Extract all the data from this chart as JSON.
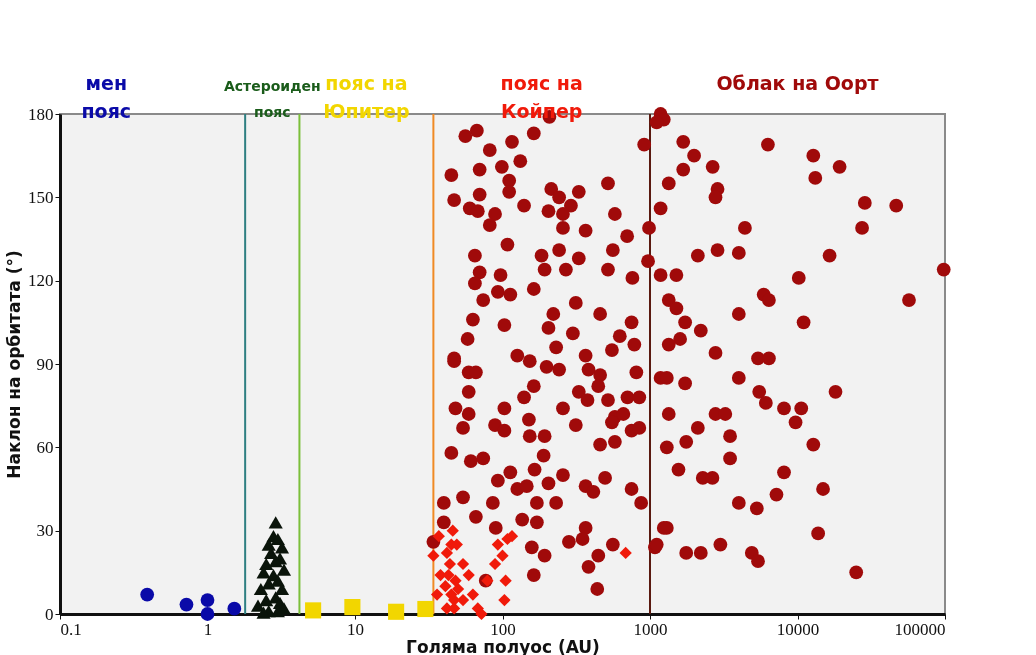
{
  "chart_data": {
    "type": "scatter",
    "xlabel": "Голяма полуос (AU)",
    "ylabel": "Наклон на орбитата (°)",
    "log": "x",
    "xlim": [
      0.1,
      100000
    ],
    "xticks": [
      0.1,
      1,
      10,
      100,
      1000,
      10000,
      100000
    ],
    "ylim": [
      0,
      180
    ],
    "yticks": [
      0,
      30,
      60,
      90,
      120,
      150,
      180
    ],
    "grid": false,
    "series": [
      {
        "color": "#0a0aa8",
        "marker": "circle",
        "x": [
          0.39,
          0.72,
          1.0,
          1.0,
          1.52
        ],
        "values": [
          7,
          3.4,
          5,
          0,
          1.9
        ]
      },
      {
        "color": "#0a140a",
        "marker": "triangle",
        "x": [
          2.9,
          2.8,
          3.0,
          2.6,
          3.2,
          2.7,
          3.1,
          2.5,
          2.9,
          3.3,
          2.4,
          2.8,
          3.0,
          2.6,
          2.3,
          3.2,
          2.9,
          2.5,
          3.1,
          2.2,
          3.0,
          2.6,
          3.3,
          2.4
        ],
        "values": [
          33,
          28,
          27,
          25,
          24,
          22,
          20,
          18,
          19,
          16,
          15,
          14,
          12,
          11,
          9,
          9,
          6,
          5,
          4,
          3,
          1,
          1,
          2,
          0.5
        ]
      },
      {
        "color": "#f2d600",
        "marker": "square",
        "x": [
          5.2,
          9.6,
          19,
          30
        ],
        "values": [
          1.3,
          2.5,
          0.8,
          1.8
        ]
      },
      {
        "color": "#f01a0a",
        "marker": "diamond",
        "x": [
          34,
          36,
          37,
          38,
          42,
          43,
          45,
          47,
          47,
          49,
          50,
          54,
          54,
          59,
          63,
          68,
          72,
          79,
          89,
          93,
          100,
          103,
          105,
          108,
          116,
          684,
          41,
          44,
          46,
          48,
          42,
          45
        ],
        "values": [
          21,
          7,
          28,
          14,
          2,
          14,
          25,
          2,
          5,
          25,
          9,
          18,
          5,
          14,
          7,
          2,
          0,
          12,
          18,
          25,
          21,
          5,
          12,
          27,
          28,
          22,
          10,
          18,
          30,
          12,
          22,
          7
        ]
      },
      {
        "color": "#a00a0a",
        "marker": "circle",
        "x": [
          1180,
          1240,
          1680,
          1990,
          1680,
          2660,
          1340,
          2870,
          2780,
          6300,
          12800,
          19300,
          13200,
          28600,
          46700,
          27400,
          4400,
          1180,
          16500,
          98000,
          2110,
          2870,
          4000,
          10200,
          1510,
          1180,
          5900,
          6400,
          57000,
          1340,
          1510,
          1730,
          4000,
          11000,
          2210,
          1600,
          1340,
          2780,
          5400,
          6400,
          4000,
          1730,
          1180,
          1300,
          5500,
          6100,
          8100,
          10600,
          9700,
          18100,
          1340,
          2780,
          3240,
          2110,
          3490,
          1760,
          1300,
          12800,
          3490,
          1560,
          2280,
          2650,
          8100,
          14900,
          7200,
          4000,
          5300,
          1300,
          1080,
          1760,
          2210,
          3000,
          4900,
          5400,
          13800,
          25000,
          208,
          163,
          67,
          56,
          116,
          82,
          132,
          70,
          99,
          45,
          111,
          111,
          70,
          47,
          60,
          68,
          89,
          82,
          140,
          214,
          329,
          242,
          291,
          205,
          257,
          257,
          366,
          519,
          578,
          913,
          1110,
          985,
          700,
          560,
          108,
          65,
          242,
          329,
          184,
          193,
          269,
          519,
          760,
          970,
          70,
          97,
          65,
          93,
          113,
          163,
          74,
          314,
          459,
          63,
          103,
          221,
          750,
          58,
          205,
          300,
          624,
          783,
          47,
          126,
          231,
          366,
          552,
          47,
          59,
          66,
          153,
          199,
          242,
          383,
          459,
          446,
          808,
          59,
          163,
          140,
          329,
          377,
          519,
          704,
          846,
          48,
          59,
          103,
          257,
          578,
          660,
          54,
          89,
          103,
          151,
          314,
          552,
          750,
          846,
          153,
          193,
          459,
          578,
          45,
          61,
          74,
          190,
          165,
          113,
          93,
          126,
          146,
          205,
          257,
          366,
          413,
          496,
          750,
          871,
          40,
          54,
          86,
          171,
          231,
          66,
          136,
          171,
          90,
          366,
          282,
          349,
          560,
          158,
          193,
          446,
          383,
          163,
          439,
          1240,
          1110,
          77,
          34,
          40
        ],
        "values": [
          180,
          178,
          170,
          165,
          160,
          161,
          155,
          153,
          150,
          169,
          165,
          161,
          157,
          148,
          147,
          139,
          139,
          146,
          129,
          124,
          129,
          131,
          130,
          121,
          122,
          122,
          115,
          113,
          113,
          113,
          110,
          105,
          108,
          105,
          102,
          99,
          97,
          94,
          92,
          92,
          85,
          83,
          85,
          85,
          80,
          76,
          74,
          74,
          69,
          80,
          72,
          72,
          72,
          67,
          64,
          62,
          60,
          61,
          56,
          52,
          49,
          49,
          51,
          45,
          43,
          40,
          38,
          31,
          24,
          22,
          22,
          25,
          22,
          19,
          29,
          15,
          179,
          173,
          174,
          172,
          170,
          167,
          163,
          160,
          161,
          158,
          156,
          152,
          151,
          149,
          146,
          145,
          144,
          140,
          147,
          153,
          152,
          150,
          147,
          145,
          144,
          139,
          138,
          155,
          144,
          169,
          177,
          139,
          136,
          131,
          133,
          129,
          131,
          128,
          129,
          124,
          124,
          124,
          121,
          127,
          123,
          122,
          119,
          116,
          115,
          117,
          113,
          112,
          108,
          106,
          104,
          108,
          105,
          99,
          103,
          101,
          100,
          97,
          92,
          93,
          96,
          93,
          95,
          91,
          87,
          87,
          91,
          89,
          88,
          88,
          86,
          82,
          87,
          80,
          82,
          78,
          80,
          77,
          77,
          78,
          78,
          74,
          72,
          74,
          74,
          71,
          72,
          67,
          68,
          66,
          70,
          68,
          69,
          66,
          67,
          64,
          64,
          61,
          62,
          58,
          55,
          56,
          57,
          52,
          51,
          48,
          45,
          46,
          47,
          50,
          46,
          44,
          49,
          45,
          40,
          40,
          42,
          40,
          40,
          40,
          35,
          34,
          33,
          31,
          31,
          26,
          27,
          25,
          24,
          21,
          21,
          17,
          14,
          9,
          31,
          25,
          12,
          26,
          33
        ]
      }
    ],
    "ref_lines": [
      {
        "axis": "x",
        "value": 1.8,
        "color": "#2e7f82"
      },
      {
        "axis": "x",
        "value": 4.2,
        "color": "#7bbf3a"
      },
      {
        "axis": "x",
        "value": 34,
        "color": "#f08a24"
      },
      {
        "axis": "x",
        "value": 1000,
        "color": "#5a1a10"
      }
    ],
    "annotations": [
      "мен\nпояс",
      "Астероиден\nпояс",
      "пояс на\nЮпитер",
      "пояс на\nКойпер",
      "Облак на Оорт"
    ]
  }
}
